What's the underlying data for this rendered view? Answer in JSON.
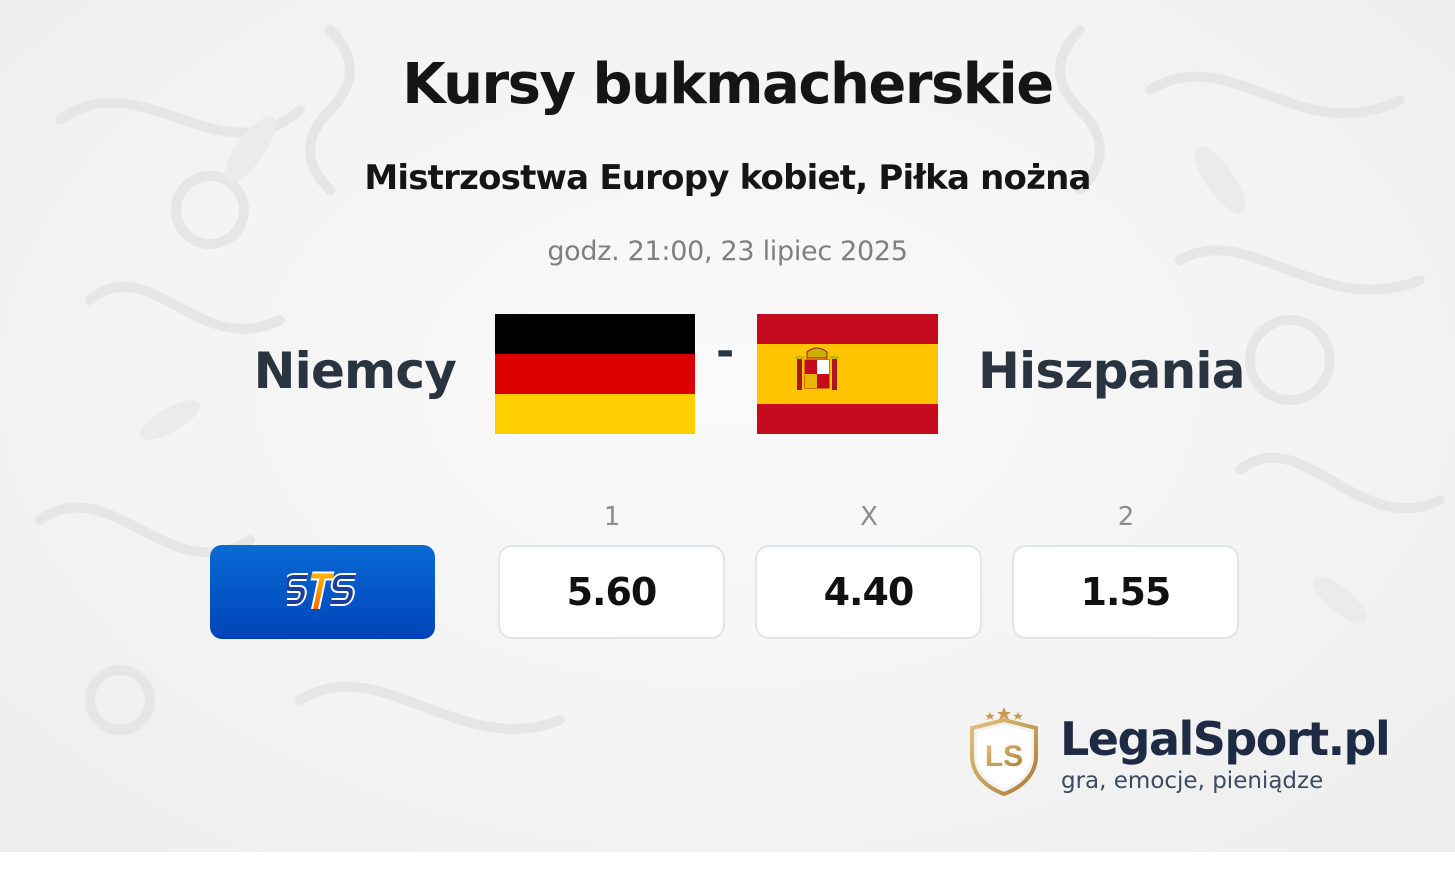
{
  "header": {
    "title": "Kursy bukmacherskie",
    "subtitle": "Mistrzostwa Europy kobiet, Piłka nożna",
    "datetime": "godz. 21:00, 23 lipiec 2025"
  },
  "match": {
    "home_team": "Niemcy",
    "away_team": "Hiszpania",
    "separator": "-",
    "home_flag": "germany-flag",
    "away_flag": "spain-flag"
  },
  "odds": {
    "bookmaker": {
      "name": "STS",
      "logo": "sts-logo",
      "color": "#0055c8"
    },
    "headers": [
      "1",
      "X",
      "2"
    ],
    "values": [
      "5.60",
      "4.40",
      "1.55"
    ]
  },
  "brand": {
    "name": "LegalSport.pl",
    "tagline": "gra, emocje, pieniądze",
    "logo_letters": "LS",
    "gold": "#c49a52",
    "navy": "#1f2a44"
  }
}
